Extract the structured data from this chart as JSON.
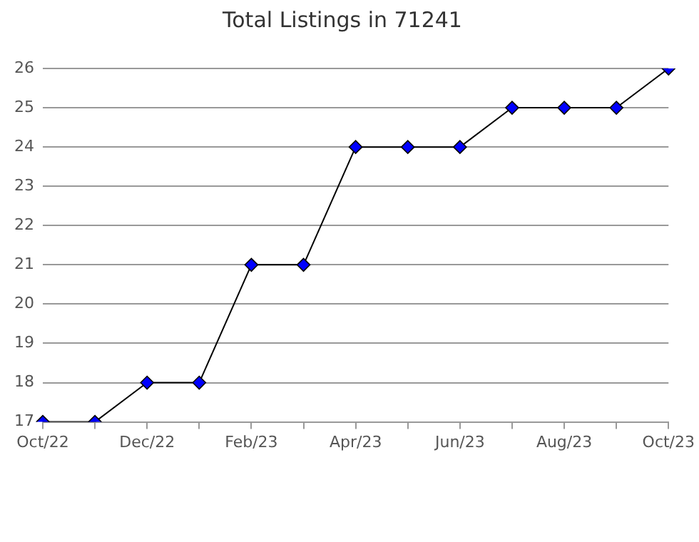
{
  "chart_data": {
    "type": "line",
    "title": "Total Listings in 71241",
    "categories": [
      "Oct/22",
      null,
      "Dec/22",
      null,
      "Feb/23",
      null,
      "Apr/23",
      null,
      "Jun/23",
      null,
      "Aug/23",
      null,
      "Oct/23"
    ],
    "series": [
      {
        "color": "#0000ff",
        "values": [
          17,
          17,
          18,
          18,
          21,
          21,
          24,
          24,
          24,
          25,
          25,
          25,
          26
        ]
      }
    ],
    "ylim": [
      17,
      26
    ],
    "yticks": [
      17,
      18,
      19,
      20,
      21,
      22,
      23,
      24,
      25,
      26
    ],
    "grid": "y",
    "legend": false,
    "marker": "diamond",
    "line_style": "solid"
  }
}
